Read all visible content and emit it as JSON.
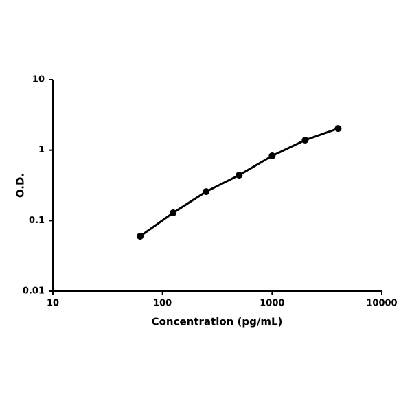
{
  "chart_data": {
    "type": "line",
    "x_label": "Concentration (pg/mL)",
    "y_label": "O.D.",
    "x": [
      62.5,
      125,
      250,
      500,
      1000,
      2000,
      4000
    ],
    "series": [
      {
        "name": "O.D.",
        "color": "#000000",
        "values": [
          0.06,
          0.129,
          0.258,
          0.442,
          0.83,
          1.39,
          2.03
        ]
      }
    ],
    "xlim": [
      10,
      10000
    ],
    "ylim": [
      0.01,
      10
    ],
    "xticks": [
      10,
      100,
      1000,
      10000
    ],
    "yticks": [
      0.01,
      0.1,
      1,
      10
    ],
    "x_log": true,
    "y_log": true,
    "grid": false
  }
}
